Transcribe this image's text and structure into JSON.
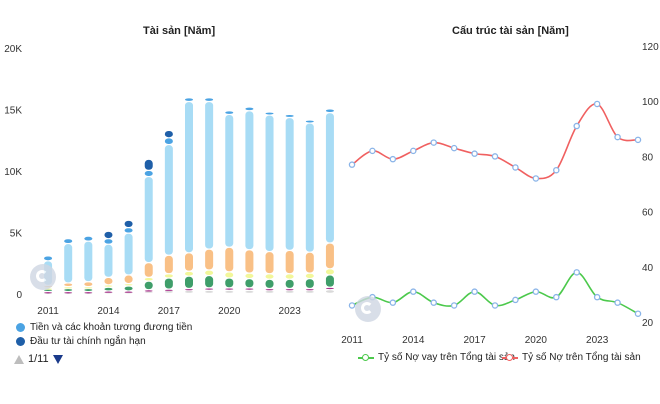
{
  "left_chart": {
    "title": "Tài sản [Năm]",
    "legend": [
      {
        "label": "Tiền và các khoản tương đương tiền",
        "color": "#4ba3e3"
      },
      {
        "label": "Đầu tư tài chính ngắn hạn",
        "color": "#1f5fa8"
      }
    ],
    "pager": "1/11"
  },
  "right_chart": {
    "title": "Cấu trúc tài sản [Năm]",
    "legend": [
      {
        "label": "Tỷ số Nợ vay trên Tổng tài sản",
        "color": "#4cc94c"
      },
      {
        "label": "Tỷ số Nợ trên Tổng tài sản",
        "color": "#f06060"
      }
    ]
  },
  "chart_data": [
    {
      "type": "bar",
      "stacked": true,
      "title": "Tài sản [Năm]",
      "categories": [
        "2011",
        "2012",
        "2013",
        "2014",
        "2015",
        "2016",
        "2017",
        "2018",
        "2019",
        "2020",
        "2021",
        "2022",
        "2023",
        "2024",
        "2025"
      ],
      "x_tick_labels": [
        "2011",
        "2014",
        "2017",
        "2020",
        "2023"
      ],
      "y_tick_labels": [
        "0",
        "5K",
        "10K",
        "15K",
        "20K"
      ],
      "ylim": [
        0,
        20000
      ],
      "grid": false,
      "series": [
        {
          "name": "Đầu tư tài chính ngắn hạn",
          "color": "#1f5fa8",
          "values": [
            0,
            0,
            0,
            600,
            600,
            900,
            600,
            0,
            0,
            0,
            0,
            0,
            0,
            0,
            0
          ]
        },
        {
          "name": "Tiền và các khoản tương đương tiền",
          "color": "#4ba3e3",
          "values": [
            400,
            400,
            400,
            450,
            450,
            500,
            550,
            300,
            300,
            300,
            300,
            250,
            250,
            250,
            300
          ]
        },
        {
          "color": "#a8dcf5",
          "values": [
            2000,
            3200,
            3300,
            2700,
            3400,
            7000,
            9000,
            12300,
            12000,
            10800,
            11300,
            11100,
            10800,
            10500,
            10600
          ]
        },
        {
          "color": "#f9c086",
          "values": [
            200,
            300,
            400,
            600,
            700,
            1200,
            1500,
            1500,
            1700,
            2000,
            1900,
            1800,
            1900,
            1700,
            2100
          ]
        },
        {
          "color": "#f2f79a",
          "values": [
            100,
            150,
            150,
            200,
            200,
            300,
            350,
            400,
            450,
            500,
            450,
            450,
            450,
            450,
            500
          ]
        },
        {
          "color": "#3f9e6a",
          "values": [
            200,
            250,
            250,
            300,
            400,
            700,
            900,
            1000,
            1000,
            800,
            750,
            750,
            750,
            800,
            1000
          ]
        },
        {
          "color": "#a72f8a",
          "values": [
            50,
            50,
            50,
            50,
            50,
            100,
            100,
            150,
            200,
            200,
            200,
            150,
            150,
            150,
            200
          ]
        },
        {
          "color": "#d9d9d9",
          "values": [
            100,
            100,
            100,
            150,
            150,
            200,
            250,
            250,
            250,
            250,
            250,
            250,
            250,
            250,
            300
          ]
        }
      ]
    },
    {
      "type": "line",
      "title": "Cấu trúc tài sản [Năm]",
      "x": [
        "2011",
        "2012",
        "2013",
        "2014",
        "2015",
        "2016",
        "2017",
        "2018",
        "2019",
        "2020",
        "2021",
        "2022",
        "2023",
        "2024",
        "2025"
      ],
      "x_tick_labels": [
        "2011",
        "2014",
        "2017",
        "2020",
        "2023"
      ],
      "y_tick_labels": [
        "20",
        "40",
        "60",
        "80",
        "100",
        "120"
      ],
      "ylim": [
        20,
        120
      ],
      "grid": false,
      "series": [
        {
          "name": "Tỷ số Nợ vay trên Tổng tài sản",
          "color": "#4cc94c",
          "values": [
            26,
            29,
            27,
            31,
            27,
            26,
            31,
            26,
            28,
            31,
            29,
            38,
            29,
            27,
            23
          ]
        },
        {
          "name": "Tỷ số Nợ trên Tổng tài sản",
          "color": "#f06060",
          "values": [
            77,
            82,
            79,
            82,
            85,
            83,
            81,
            80,
            76,
            72,
            75,
            91,
            99,
            87,
            86
          ]
        }
      ]
    }
  ]
}
